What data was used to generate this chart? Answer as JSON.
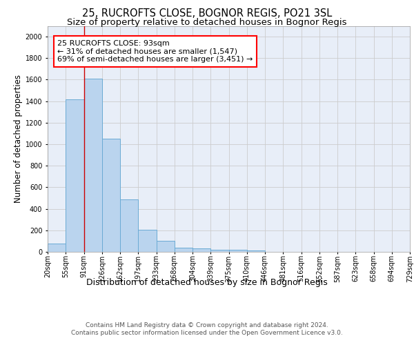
{
  "title1": "25, RUCROFTS CLOSE, BOGNOR REGIS, PO21 3SL",
  "title2": "Size of property relative to detached houses in Bognor Regis",
  "xlabel": "Distribution of detached houses by size in Bognor Regis",
  "ylabel": "Number of detached properties",
  "bins": [
    "20sqm",
    "55sqm",
    "91sqm",
    "126sqm",
    "162sqm",
    "197sqm",
    "233sqm",
    "268sqm",
    "304sqm",
    "339sqm",
    "375sqm",
    "410sqm",
    "446sqm",
    "481sqm",
    "516sqm",
    "552sqm",
    "587sqm",
    "623sqm",
    "658sqm",
    "694sqm",
    "729sqm"
  ],
  "values": [
    80,
    1420,
    1610,
    1050,
    490,
    205,
    105,
    40,
    30,
    22,
    20,
    15,
    0,
    0,
    0,
    0,
    0,
    0,
    0,
    0
  ],
  "bar_color": "#bad4ee",
  "bar_edge_color": "#6aaad4",
  "bar_edge_width": 0.7,
  "vline_x_index": 2,
  "vline_color": "#cc0000",
  "annotation_text": "25 RUCROFTS CLOSE: 93sqm\n← 31% of detached houses are smaller (1,547)\n69% of semi-detached houses are larger (3,451) →",
  "annotation_box_color": "white",
  "annotation_box_edge_color": "red",
  "ylim": [
    0,
    2100
  ],
  "yticks": [
    0,
    200,
    400,
    600,
    800,
    1000,
    1200,
    1400,
    1600,
    1800,
    2000
  ],
  "grid_color": "#cccccc",
  "background_color": "#e8eef8",
  "footer_text": "Contains HM Land Registry data © Crown copyright and database right 2024.\nContains public sector information licensed under the Open Government Licence v3.0.",
  "title1_fontsize": 10.5,
  "title2_fontsize": 9.5,
  "xlabel_fontsize": 9,
  "ylabel_fontsize": 8.5,
  "tick_fontsize": 7,
  "annotation_fontsize": 8,
  "footer_fontsize": 6.5
}
